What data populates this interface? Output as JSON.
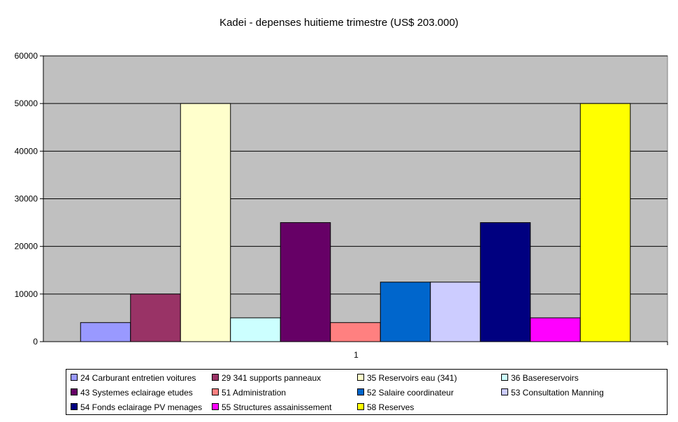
{
  "chart_data": {
    "type": "bar",
    "title": "Kadei - depenses huitieme trimestre (US$ 203.000)",
    "categories": [
      "1"
    ],
    "ylim": [
      0,
      60000
    ],
    "yticks": [
      "0",
      "10000",
      "20000",
      "30000",
      "40000",
      "50000",
      "60000"
    ],
    "grid": true,
    "legend_position": "bottom",
    "plot_background": "#c0c0c0",
    "series": [
      {
        "name": "24 Carburant entretien voitures",
        "values": [
          4000
        ],
        "color": "#9999ff"
      },
      {
        "name": "29 341 supports panneaux",
        "values": [
          10000
        ],
        "color": "#993366"
      },
      {
        "name": "35 Reservoirs eau (341)",
        "values": [
          50000
        ],
        "color": "#ffffcc"
      },
      {
        "name": "36 Basereservoirs",
        "values": [
          5000
        ],
        "color": "#ccffff"
      },
      {
        "name": "43 Systemes eclairage etudes",
        "values": [
          25000
        ],
        "color": "#660066"
      },
      {
        "name": "51 Administration",
        "values": [
          4000
        ],
        "color": "#ff8080"
      },
      {
        "name": "52 Salaire coordinateur",
        "values": [
          12500
        ],
        "color": "#0066cc"
      },
      {
        "name": "53 Consultation Manning",
        "values": [
          12500
        ],
        "color": "#ccccff"
      },
      {
        "name": "54 Fonds eclairage PV menages",
        "values": [
          25000
        ],
        "color": "#000080"
      },
      {
        "name": "55 Structures assainissement",
        "values": [
          5000
        ],
        "color": "#ff00ff"
      },
      {
        "name": "58 Reserves",
        "values": [
          50000
        ],
        "color": "#ffff00"
      }
    ]
  }
}
